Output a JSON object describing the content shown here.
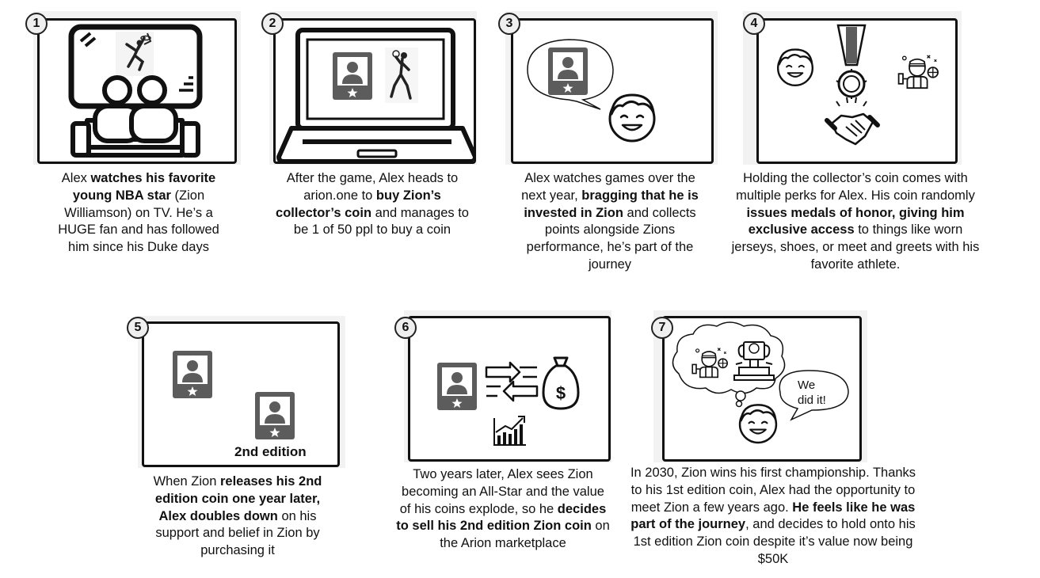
{
  "steps": [
    {
      "number": "1",
      "caption": [
        {
          "t": "Alex "
        },
        {
          "t": "watches his favorite young NBA star",
          "b": true
        },
        {
          "t": " (Zion Williamson) on TV. He’s a HUGE fan and has followed him since his Duke days"
        }
      ]
    },
    {
      "number": "2",
      "caption": [
        {
          "t": "After the game, Alex heads to arion.one to "
        },
        {
          "t": "buy Zion’s collector’s coin",
          "b": true
        },
        {
          "t": " and manages to be 1 of 50 ppl to buy a coin"
        }
      ]
    },
    {
      "number": "3",
      "caption": [
        {
          "t": "Alex watches games over the next year, "
        },
        {
          "t": "bragging that he is invested in Zion",
          "b": true
        },
        {
          "t": " and collects points alongside Zions performance, he’s part of the journey"
        }
      ]
    },
    {
      "number": "4",
      "caption": [
        {
          "t": "Holding the collector’s coin comes with multiple perks for Alex. His coin randomly "
        },
        {
          "t": "issues medals of honor, giving him exclusive access",
          "b": true
        },
        {
          "t": " to things like worn jerseys, shoes, or meet and greets with his favorite athlete."
        }
      ]
    },
    {
      "number": "5",
      "edition_label": "2nd edition",
      "caption": [
        {
          "t": "When Zion "
        },
        {
          "t": "releases his 2nd edition coin one year later, Alex doubles down",
          "b": true
        },
        {
          "t": " on his support and belief in Zion by purchasing it"
        }
      ]
    },
    {
      "number": "6",
      "caption": [
        {
          "t": "Two years later, Alex sees Zion becoming an All-Star and the value of his coins explode, so he "
        },
        {
          "t": "decides to sell his 2nd edition Zion coin",
          "b": true
        },
        {
          "t": " on the Arion marketplace"
        }
      ]
    },
    {
      "number": "7",
      "bubble": "We did it!",
      "caption": [
        {
          "t": "In 2030, Zion wins his first championship. Thanks to his 1st edition coin, Alex had the opportunity to meet Zion a few years ago. "
        },
        {
          "t": "He feels like he was part of the journey",
          "b": true
        },
        {
          "t": ", and decides to hold onto his 1st edition Zion coin despite it’s value now being $50K"
        }
      ]
    }
  ],
  "icons": {
    "tv": "tv-watching-icon",
    "laptop": "laptop-icon",
    "card": "player-card-icon",
    "face": "smiling-face-icon",
    "medal": "medal-icon",
    "handshake": "handshake-icon",
    "athlete": "athlete-icon",
    "money_bag": "money-bag-icon",
    "exchange": "exchange-arrows-icon",
    "growth_chart": "growth-chart-icon",
    "trophy": "trophy-icon"
  },
  "colors": {
    "card_fill": "#5c5c5c",
    "panel_bg": "#f2f2f2",
    "frame_border": "#111111"
  }
}
